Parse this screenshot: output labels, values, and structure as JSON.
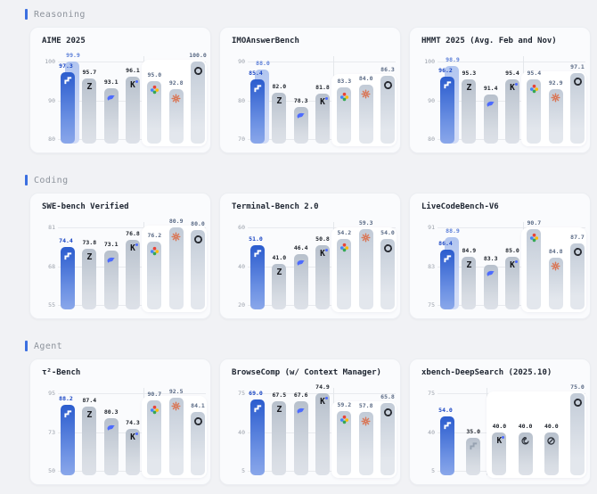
{
  "colors": {
    "accent": "#3b6fe0",
    "primary_bar": "#2b5cce",
    "primary_bar_light": "#b1c5f0",
    "primary_label": "#1a46c4",
    "primary_label_light": "#5c7fd8",
    "default_label": "#20252d",
    "panel_label": "#5a6a85",
    "whale_blue": "#4d6bfe",
    "claude_orange": "#d97757",
    "page_bg": "#f1f2f5"
  },
  "sections": [
    {
      "label": "Reasoning"
    },
    {
      "label": "Coding"
    },
    {
      "label": "Agent"
    }
  ],
  "chart_data": [
    {
      "section": "Reasoning",
      "type": "bar",
      "title": "AIME 2025",
      "yticks": [
        "100",
        "90",
        "80"
      ],
      "ymax": 100,
      "ymin": 80,
      "divider_after": 3,
      "panel_from": 4,
      "legend_position": "none",
      "grid": true,
      "categories": [
        "primary-model",
        "z",
        "whale",
        "k",
        "gemini-star",
        "orange-burst",
        "knot"
      ],
      "bars": [
        {
          "icon": "primary-icon",
          "variant": "primary",
          "value": 97.3,
          "value2": 99.9
        },
        {
          "icon": "z-icon",
          "variant": "default",
          "value": 95.7
        },
        {
          "icon": "whale-icon",
          "variant": "default",
          "value": 93.1
        },
        {
          "icon": "k-icon",
          "variant": "default",
          "value": 96.1
        },
        {
          "icon": "gemini-star-icon",
          "variant": "panel",
          "value": 95.0
        },
        {
          "icon": "orange-burst-icon",
          "variant": "panel",
          "value": 92.8
        },
        {
          "icon": "knot-icon",
          "variant": "panel",
          "value": 100.0
        }
      ]
    },
    {
      "section": "Reasoning",
      "type": "bar",
      "title": "IMOAnswerBench",
      "yticks": [
        "90",
        "80",
        "70"
      ],
      "ymax": 90,
      "ymin": 70,
      "divider_after": 3,
      "panel_from": 4,
      "legend_position": "none",
      "grid": true,
      "categories": [
        "primary-model",
        "z",
        "whale",
        "k",
        "gemini-star",
        "orange-burst",
        "knot"
      ],
      "bars": [
        {
          "icon": "primary-icon",
          "variant": "primary",
          "value": 85.4,
          "value2": 88.0
        },
        {
          "icon": "z-icon",
          "variant": "default",
          "value": 82.0
        },
        {
          "icon": "whale-icon",
          "variant": "default",
          "value": 78.3
        },
        {
          "icon": "k-icon",
          "variant": "default",
          "value": 81.8
        },
        {
          "icon": "gemini-star-icon",
          "variant": "panel",
          "value": 83.3
        },
        {
          "icon": "orange-burst-icon",
          "variant": "panel",
          "value": 84.0
        },
        {
          "icon": "knot-icon",
          "variant": "panel",
          "value": 86.3
        }
      ]
    },
    {
      "section": "Reasoning",
      "type": "bar",
      "title": "HMMT 2025 (Avg. Feb and Nov)",
      "yticks": [
        "100",
        "90",
        "80"
      ],
      "ymax": 100,
      "ymin": 80,
      "divider_after": 3,
      "panel_from": 4,
      "legend_position": "none",
      "grid": true,
      "categories": [
        "primary-model",
        "z",
        "whale",
        "k",
        "gemini-star",
        "orange-burst",
        "knot"
      ],
      "bars": [
        {
          "icon": "primary-icon",
          "variant": "primary",
          "value": 96.2,
          "value2": 98.9
        },
        {
          "icon": "z-icon",
          "variant": "default",
          "value": 95.3
        },
        {
          "icon": "whale-icon",
          "variant": "default",
          "value": 91.4
        },
        {
          "icon": "k-icon",
          "variant": "default",
          "value": 95.4
        },
        {
          "icon": "gemini-star-icon",
          "variant": "panel",
          "value": 95.4
        },
        {
          "icon": "orange-burst-icon",
          "variant": "panel",
          "value": 92.9
        },
        {
          "icon": "knot-icon",
          "variant": "panel",
          "value": 97.1
        }
      ]
    },
    {
      "section": "Coding",
      "type": "bar",
      "title": "SWE-bench Verified",
      "yticks": [
        "81",
        "68",
        "55"
      ],
      "ymax": 81,
      "ymin": 55,
      "divider_after": 3,
      "panel_from": 4,
      "legend_position": "none",
      "grid": true,
      "categories": [
        "primary-model",
        "z",
        "whale",
        "k",
        "gemini-star",
        "orange-burst",
        "knot"
      ],
      "bars": [
        {
          "icon": "primary-icon",
          "variant": "primary",
          "value": 74.4
        },
        {
          "icon": "z-icon",
          "variant": "default",
          "value": 73.8
        },
        {
          "icon": "whale-icon",
          "variant": "default",
          "value": 73.1
        },
        {
          "icon": "k-icon",
          "variant": "default",
          "value": 76.8
        },
        {
          "icon": "gemini-star-icon",
          "variant": "panel",
          "value": 76.2
        },
        {
          "icon": "orange-burst-icon",
          "variant": "panel",
          "value": 80.9
        },
        {
          "icon": "knot-icon",
          "variant": "panel",
          "value": 80.0
        }
      ]
    },
    {
      "section": "Coding",
      "type": "bar",
      "title": "Terminal-Bench 2.0",
      "yticks": [
        "60",
        "40",
        "20"
      ],
      "ymax": 60,
      "ymin": 20,
      "divider_after": 3,
      "panel_from": 4,
      "legend_position": "none",
      "grid": true,
      "categories": [
        "primary-model",
        "z",
        "whale",
        "k",
        "gemini-star",
        "orange-burst",
        "knot"
      ],
      "bars": [
        {
          "icon": "primary-icon",
          "variant": "primary",
          "value": 51.0
        },
        {
          "icon": "z-icon",
          "variant": "default",
          "value": 41.0
        },
        {
          "icon": "whale-icon",
          "variant": "default",
          "value": 46.4
        },
        {
          "icon": "k-icon",
          "variant": "default",
          "value": 50.8
        },
        {
          "icon": "gemini-star-icon",
          "variant": "panel",
          "value": 54.2
        },
        {
          "icon": "orange-burst-icon",
          "variant": "panel",
          "value": 59.3
        },
        {
          "icon": "knot-icon",
          "variant": "panel",
          "value": 54.0
        }
      ]
    },
    {
      "section": "Coding",
      "type": "bar",
      "title": "LiveCodeBench-V6",
      "yticks": [
        "91",
        "83",
        "75"
      ],
      "ymax": 91,
      "ymin": 75,
      "divider_after": 3,
      "panel_from": 4,
      "legend_position": "none",
      "grid": true,
      "categories": [
        "primary-model",
        "z",
        "whale",
        "k",
        "gemini-star",
        "orange-burst",
        "knot"
      ],
      "bars": [
        {
          "icon": "primary-icon",
          "variant": "primary",
          "value": 86.4,
          "value2": 88.9
        },
        {
          "icon": "z-icon",
          "variant": "default",
          "value": 84.9
        },
        {
          "icon": "whale-icon",
          "variant": "default",
          "value": 83.3
        },
        {
          "icon": "k-icon",
          "variant": "default",
          "value": 85.0
        },
        {
          "icon": "gemini-star-icon",
          "variant": "panel",
          "value": 90.7
        },
        {
          "icon": "orange-burst-icon",
          "variant": "panel",
          "value": 84.8
        },
        {
          "icon": "knot-icon",
          "variant": "panel",
          "value": 87.7
        }
      ]
    },
    {
      "section": "Agent",
      "type": "bar",
      "title": "τ²-Bench",
      "yticks": [
        "95",
        "73",
        "50"
      ],
      "ymax": 95,
      "ymin": 50,
      "divider_after": 3,
      "panel_from": 4,
      "legend_position": "none",
      "grid": true,
      "categories": [
        "primary-model",
        "z",
        "whale",
        "k",
        "gemini-star",
        "orange-burst",
        "knot"
      ],
      "bars": [
        {
          "icon": "primary-icon",
          "variant": "primary",
          "value": 88.2
        },
        {
          "icon": "z-icon",
          "variant": "default",
          "value": 87.4
        },
        {
          "icon": "whale-icon",
          "variant": "default",
          "value": 80.3
        },
        {
          "icon": "k-icon",
          "variant": "default",
          "value": 74.3
        },
        {
          "icon": "gemini-star-icon",
          "variant": "panel",
          "value": 90.7
        },
        {
          "icon": "orange-burst-icon",
          "variant": "panel",
          "value": 92.5
        },
        {
          "icon": "knot-icon",
          "variant": "panel",
          "value": 84.1
        }
      ]
    },
    {
      "section": "Agent",
      "type": "bar",
      "title": "BrowseComp (w/ Context Manager)",
      "yticks": [
        "75",
        "40",
        "5"
      ],
      "ymax": 75,
      "ymin": 5,
      "divider_after": 3,
      "panel_from": 4,
      "legend_position": "none",
      "grid": true,
      "categories": [
        "primary-model",
        "z",
        "whale",
        "k",
        "gemini-star",
        "orange-burst",
        "knot"
      ],
      "bars": [
        {
          "icon": "primary-icon",
          "variant": "primary",
          "value": 69.0
        },
        {
          "icon": "z-icon",
          "variant": "default",
          "value": 67.5
        },
        {
          "icon": "whale-icon",
          "variant": "default",
          "value": 67.6
        },
        {
          "icon": "k-icon",
          "variant": "default",
          "value": 74.9
        },
        {
          "icon": "gemini-star-icon",
          "variant": "panel",
          "value": 59.2
        },
        {
          "icon": "orange-burst-icon",
          "variant": "panel",
          "value": 57.8
        },
        {
          "icon": "knot-icon",
          "variant": "panel",
          "value": 65.8
        }
      ]
    },
    {
      "section": "Agent",
      "type": "bar",
      "title": "xbench-DeepSearch (2025.10)",
      "yticks": [
        "75",
        "40",
        "5"
      ],
      "ymax": 75,
      "ymin": 5,
      "divider_after": 1,
      "panel_from": 2,
      "legend_position": "none",
      "grid": true,
      "categories": [
        "primary-model",
        "primary-model-gray",
        "k",
        "spiral",
        "slashed-circle",
        "knot"
      ],
      "bars": [
        {
          "icon": "primary-icon",
          "variant": "primary",
          "value": 54.0
        },
        {
          "icon": "primary-gray-icon",
          "variant": "default",
          "value": 35.0
        },
        {
          "icon": "k-icon",
          "variant": "default",
          "value": 40.0
        },
        {
          "icon": "spiral-icon",
          "variant": "default",
          "value": 40.0
        },
        {
          "icon": "slashed-circle-icon",
          "variant": "default",
          "value": 40.0
        },
        {
          "icon": "knot-icon",
          "variant": "panel",
          "value": 75.0
        }
      ]
    }
  ]
}
